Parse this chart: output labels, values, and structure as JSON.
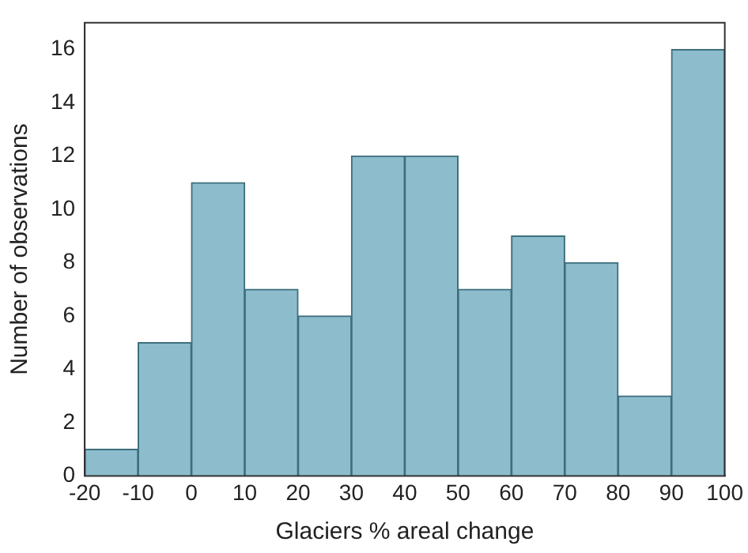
{
  "chart_data": {
    "type": "histogram",
    "xlabel": "Glaciers % areal change",
    "ylabel": "Number of observations",
    "bins": [
      -20,
      -10,
      0,
      10,
      20,
      30,
      40,
      50,
      60,
      70,
      80,
      90,
      100
    ],
    "values": [
      1,
      5,
      11,
      7,
      6,
      12,
      12,
      7,
      9,
      8,
      3,
      16
    ],
    "color": "#8dbdcc",
    "xlim": [
      -20,
      100
    ],
    "xticks": [
      -20,
      -10,
      0,
      10,
      20,
      30,
      40,
      50,
      60,
      70,
      80,
      90,
      100
    ],
    "ylim": [
      0,
      17
    ],
    "yticks": [
      0,
      2,
      4,
      6,
      8,
      10,
      12,
      14,
      16
    ],
    "grid": false,
    "legend": false
  }
}
